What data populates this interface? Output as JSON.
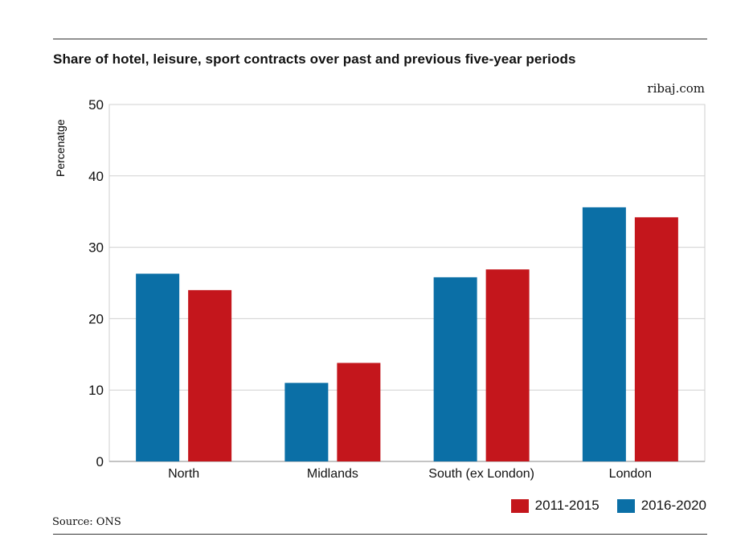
{
  "header": {
    "title": "Share of hotel, leisure, sport contracts over past and previous five-year periods",
    "site": "ribaj.com"
  },
  "footer": {
    "source": "Source: ONS"
  },
  "chart_data": {
    "type": "bar",
    "title": "Share of hotel, leisure, sport contracts over past and previous five-year periods",
    "xlabel": "",
    "ylabel": "Percenatge",
    "ylim": [
      0,
      50
    ],
    "yticks": [
      0,
      10,
      20,
      30,
      40,
      50
    ],
    "categories": [
      "North",
      "Midlands",
      "South (ex London)",
      "London"
    ],
    "series": [
      {
        "name": "2016-2020",
        "color": "#0b6fa6",
        "values": [
          26.3,
          11.0,
          25.8,
          35.6
        ]
      },
      {
        "name": "2011-2015",
        "color": "#c4161c",
        "values": [
          24.0,
          13.8,
          26.9,
          34.2
        ]
      }
    ],
    "legend": [
      {
        "label": "2011-2015",
        "color": "#c4161c"
      },
      {
        "label": "2016-2020",
        "color": "#0b6fa6"
      }
    ],
    "grid": true,
    "legend_position": "bottom-right"
  }
}
